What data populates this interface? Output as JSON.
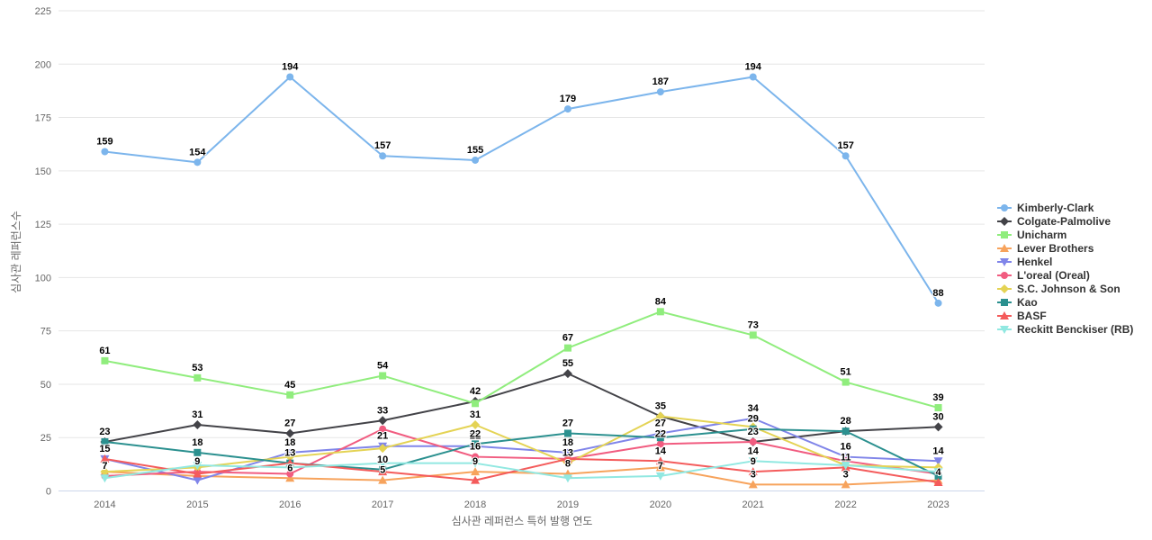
{
  "chart_data": {
    "type": "line",
    "title": "",
    "xlabel": "심사관 레퍼런스 특허 발행 연도",
    "ylabel": "심사관 레퍼런스수",
    "ylim": [
      0,
      225
    ],
    "y_ticks": [
      0,
      25,
      50,
      75,
      100,
      125,
      150,
      175,
      200,
      225
    ],
    "grid": "horizontal",
    "legend_position": "right-middle",
    "categories": [
      "2014",
      "2015",
      "2016",
      "2017",
      "2018",
      "2019",
      "2020",
      "2021",
      "2022",
      "2023"
    ],
    "series": [
      {
        "name": "Kimberly-Clark",
        "color": "#7cb5ec",
        "marker": "circle",
        "values": [
          159,
          154,
          194,
          157,
          155,
          179,
          187,
          194,
          157,
          88
        ],
        "labels_visible": [
          true,
          true,
          true,
          true,
          true,
          true,
          true,
          true,
          true,
          true
        ]
      },
      {
        "name": "Colgate-Palmolive",
        "color": "#434348",
        "marker": "diamond",
        "values": [
          23,
          31,
          27,
          33,
          42,
          55,
          35,
          23,
          28,
          30
        ],
        "labels_visible": [
          true,
          true,
          true,
          true,
          true,
          true,
          false,
          true,
          false,
          true
        ]
      },
      {
        "name": "Unicharm",
        "color": "#90ed7d",
        "marker": "square",
        "values": [
          61,
          53,
          45,
          54,
          41,
          67,
          84,
          73,
          51,
          39
        ],
        "labels_visible": [
          true,
          true,
          true,
          true,
          false,
          true,
          true,
          true,
          true,
          true
        ]
      },
      {
        "name": "Lever Brothers",
        "color": "#f7a35c",
        "marker": "triangle",
        "values": [
          9,
          7,
          6,
          5,
          9,
          8,
          11,
          3,
          3,
          5
        ],
        "labels_visible": [
          false,
          false,
          true,
          true,
          true,
          true,
          false,
          true,
          true,
          false
        ]
      },
      {
        "name": "Henkel",
        "color": "#8085e9",
        "marker": "triangle-down",
        "values": [
          15,
          5,
          18,
          21,
          21,
          18,
          27,
          34,
          16,
          14
        ],
        "labels_visible": [
          true,
          false,
          true,
          true,
          true,
          true,
          true,
          true,
          true,
          true
        ]
      },
      {
        "name": "L'oreal (Oreal)",
        "color": "#f15c80",
        "marker": "circle",
        "values": [
          7,
          9,
          8,
          29,
          16,
          15,
          22,
          23,
          14,
          8
        ],
        "labels_visible": [
          true,
          true,
          false,
          false,
          true,
          false,
          true,
          true,
          false,
          false
        ]
      },
      {
        "name": "S.C. Johnson & Son",
        "color": "#e4d354",
        "marker": "diamond",
        "values": [
          9,
          11,
          16,
          20,
          31,
          13,
          35,
          30,
          12,
          11
        ],
        "labels_visible": [
          false,
          false,
          false,
          false,
          true,
          true,
          true,
          false,
          false,
          false
        ]
      },
      {
        "name": "Kao",
        "color": "#2b908f",
        "marker": "square",
        "values": [
          23,
          18,
          13,
          10,
          22,
          27,
          25,
          29,
          28,
          7
        ],
        "labels_visible": [
          true,
          true,
          true,
          true,
          true,
          true,
          false,
          true,
          true,
          false
        ]
      },
      {
        "name": "BASF",
        "color": "#f45b5b",
        "marker": "triangle",
        "values": [
          15,
          8,
          13,
          9,
          5,
          15,
          14,
          9,
          11,
          4
        ],
        "labels_visible": [
          true,
          false,
          true,
          false,
          false,
          false,
          true,
          true,
          true,
          true
        ]
      },
      {
        "name": "Reckitt Benckiser (RB)",
        "color": "#91e8e1",
        "marker": "triangle-down",
        "values": [
          6,
          12,
          11,
          13,
          13,
          6,
          7,
          14,
          12,
          9
        ],
        "labels_visible": [
          false,
          false,
          false,
          false,
          false,
          false,
          true,
          true,
          false,
          false
        ]
      }
    ]
  },
  "style": {
    "grid_color": "#e6e6e6",
    "axis_line_color": "#ccd6eb",
    "tick_label_color": "#666666",
    "axis_title_color": "#666666",
    "legend_text_color": "#333333",
    "data_label_color": "#000000",
    "background": "#ffffff"
  }
}
